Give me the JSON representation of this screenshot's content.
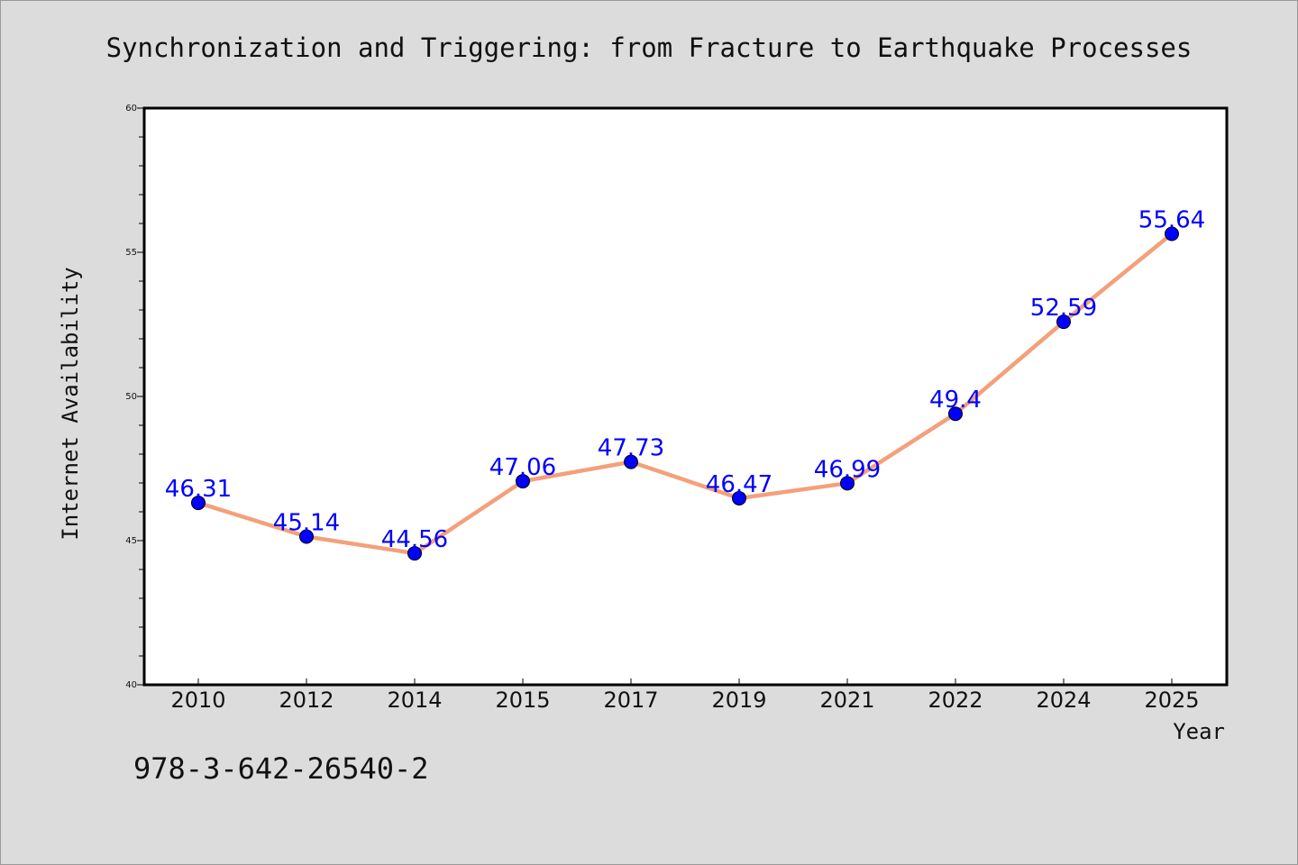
{
  "chart_data": {
    "type": "line",
    "title": "Synchronization and Triggering: from Fracture to Earthquake Processes",
    "xlabel": "Year",
    "ylabel": "Internet Availability",
    "categories": [
      "2010",
      "2012",
      "2014",
      "2015",
      "2017",
      "2019",
      "2021",
      "2022",
      "2024",
      "2025"
    ],
    "series": [
      {
        "values": [
          46.31,
          45.14,
          44.56,
          47.06,
          47.73,
          46.47,
          46.99,
          49.4,
          52.59,
          55.64
        ],
        "labels": [
          "46.31",
          "45.14",
          "44.56",
          "47.06",
          "47.73",
          "46.47",
          "46.99",
          "49.4",
          "52.59",
          "55.64"
        ],
        "line_color": "#f4a07a",
        "marker_color": "#0000ff"
      }
    ],
    "ylim": [
      40,
      60
    ],
    "yticks": [
      "40",
      "45",
      "50",
      "55",
      "60"
    ],
    "grid": false,
    "legend": "none"
  },
  "caption": "978-3-642-26540-2",
  "colors": {
    "background": "#dcdcdc",
    "plot_background": "#ffffff",
    "line": "#f4a07a",
    "marker": "#0000ff",
    "data_label": "#0000ff"
  }
}
